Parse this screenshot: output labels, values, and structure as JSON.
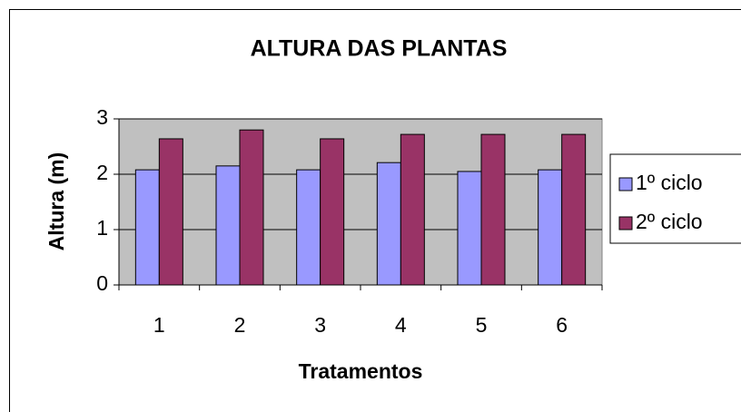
{
  "chart_data": {
    "type": "bar",
    "title": "ALTURA DAS PLANTAS",
    "xlabel": "Tratamentos",
    "ylabel": "Altura (m)",
    "categories": [
      "1",
      "2",
      "3",
      "4",
      "5",
      "6"
    ],
    "series": [
      {
        "name": "1º ciclo",
        "color": "#9999ff",
        "values": [
          2.08,
          2.15,
          2.08,
          2.21,
          2.05,
          2.08
        ]
      },
      {
        "name": "2º ciclo",
        "color": "#993366",
        "values": [
          2.64,
          2.8,
          2.64,
          2.72,
          2.72,
          2.72
        ]
      }
    ],
    "ylim": [
      0,
      3
    ],
    "yticks": [
      0,
      1,
      2,
      3
    ],
    "grid": true,
    "legend": "right"
  }
}
